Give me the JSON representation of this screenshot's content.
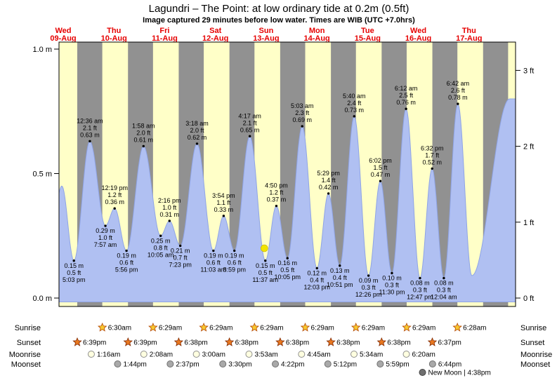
{
  "colors": {
    "day_bg": "#ffffc8",
    "night_band": "#919191",
    "tide_fill": "#b0c0f2",
    "tide_stroke": "#8fa4e6",
    "date_red": "#e60000",
    "marker_yellow": "#f2e400",
    "sunrise_star": "#f8c830",
    "sunset_star": "#e87820",
    "moonrise_fill": "#ffffe0",
    "moonset_fill": "#a9a9a9"
  },
  "chart_data": {
    "type": "area",
    "title": "Lagundri – The Point: at low ordinary tide at 0.2m (0.5ft)",
    "subtitle": "Image captured 29 minutes before low water. Times are WIB (UTC +7.0hrs)",
    "t_start": 10,
    "t_end": 226,
    "t_unit": "hours since Wed 09-Aug 00:00",
    "ylim_m": [
      0,
      1.06
    ],
    "days": [
      {
        "dow": "Wed",
        "date": "09-Aug"
      },
      {
        "dow": "Thu",
        "date": "10-Aug"
      },
      {
        "dow": "Fri",
        "date": "11-Aug"
      },
      {
        "dow": "Sat",
        "date": "12-Aug"
      },
      {
        "dow": "Sun",
        "date": "13-Aug"
      },
      {
        "dow": "Mon",
        "date": "14-Aug"
      },
      {
        "dow": "Tue",
        "date": "15-Aug"
      },
      {
        "dow": "Wed",
        "date": "16-Aug"
      },
      {
        "dow": "Thu",
        "date": "17-Aug"
      }
    ],
    "y_axis_left": [
      {
        "label": "1.0 m",
        "meters": 1.0
      },
      {
        "label": "0.5 m",
        "meters": 0.5
      },
      {
        "label": "0.0 m",
        "meters": 0.0
      }
    ],
    "y_axis_right": [
      {
        "label": "3 ft",
        "meters": 0.9144
      },
      {
        "label": "2 ft",
        "meters": 0.6096
      },
      {
        "label": "1 ft",
        "meters": 0.3048
      },
      {
        "label": "0 ft",
        "meters": 0.0
      }
    ],
    "night_bands": {
      "count": 9,
      "sunset_hour": 18.64,
      "sunrise_hour": 6.48
    },
    "marker": {
      "t": 107.13,
      "h": 0.2
    },
    "events": [
      {
        "t": 6.8,
        "h": 0.3,
        "kind": "low",
        "labeled": false
      },
      {
        "t": 11.33,
        "h": 0.45,
        "kind": "high",
        "labeled": false
      },
      {
        "t": 17.05,
        "h": 0.15,
        "kind": "low",
        "labeled": true,
        "lines": [
          "0.15 m",
          "0.5 ft",
          "5:03 pm"
        ]
      },
      {
        "t": 24.6,
        "h": 0.63,
        "kind": "high",
        "labeled": true,
        "lines": [
          "12:36 am",
          "2.1 ft",
          "0.63 m"
        ]
      },
      {
        "t": 31.95,
        "h": 0.29,
        "kind": "low",
        "labeled": true,
        "lines": [
          "0.29 m",
          "1.0 ft",
          "7:57 am"
        ]
      },
      {
        "t": 36.32,
        "h": 0.36,
        "kind": "high",
        "labeled": true,
        "lines": [
          "12:19 pm",
          "1.2 ft",
          "0.36 m"
        ]
      },
      {
        "t": 41.93,
        "h": 0.19,
        "kind": "low",
        "labeled": true,
        "lines": [
          "0.19 m",
          "0.6 ft",
          "5:56 pm"
        ]
      },
      {
        "t": 49.97,
        "h": 0.61,
        "kind": "high",
        "labeled": true,
        "lines": [
          "1:58 am",
          "2.0 ft",
          "0.61 m"
        ]
      },
      {
        "t": 58.08,
        "h": 0.25,
        "kind": "low",
        "labeled": true,
        "lines": [
          "0.25 m",
          "0.8 ft",
          "10:05 am"
        ]
      },
      {
        "t": 62.27,
        "h": 0.31,
        "kind": "high",
        "labeled": true,
        "lines": [
          "2:16 pm",
          "1.0 ft",
          "0.31 m"
        ]
      },
      {
        "t": 67.38,
        "h": 0.21,
        "kind": "low",
        "labeled": true,
        "lines": [
          "0.21 m",
          "0.7 ft",
          "7:23 pm"
        ]
      },
      {
        "t": 75.3,
        "h": 0.62,
        "kind": "high",
        "labeled": true,
        "lines": [
          "3:18 am",
          "2.0 ft",
          "0.62 m"
        ]
      },
      {
        "t": 83.05,
        "h": 0.19,
        "kind": "low",
        "labeled": true,
        "lines": [
          "0.19 m",
          "0.6 ft",
          "11:03 am"
        ]
      },
      {
        "t": 87.9,
        "h": 0.33,
        "kind": "high",
        "labeled": true,
        "lines": [
          "3:54 pm",
          "1.1 ft",
          "0.33 m"
        ]
      },
      {
        "t": 92.98,
        "h": 0.19,
        "kind": "low",
        "labeled": true,
        "lines": [
          "0.19 m",
          "0.6 ft",
          "8:59 pm"
        ]
      },
      {
        "t": 100.28,
        "h": 0.65,
        "kind": "high",
        "labeled": true,
        "lines": [
          "4:17 am",
          "2.1 ft",
          "0.65 m"
        ]
      },
      {
        "t": 107.62,
        "h": 0.15,
        "kind": "low",
        "labeled": true,
        "lines": [
          "0.15 m",
          "0.5 ft",
          "11:37 am"
        ]
      },
      {
        "t": 112.83,
        "h": 0.37,
        "kind": "high",
        "labeled": true,
        "lines": [
          "4:50 pm",
          "1.2 ft",
          "0.37 m"
        ]
      },
      {
        "t": 118.08,
        "h": 0.16,
        "kind": "low",
        "labeled": true,
        "lines": [
          "0.16 m",
          "0.5 ft",
          "10:05 pm"
        ]
      },
      {
        "t": 125.05,
        "h": 0.69,
        "kind": "high",
        "labeled": true,
        "lines": [
          "5:03 am",
          "2.3 ft",
          "0.69 m"
        ]
      },
      {
        "t": 132.05,
        "h": 0.12,
        "kind": "low",
        "labeled": true,
        "lines": [
          "0.12 m",
          "0.4 ft",
          "12:03 pm"
        ]
      },
      {
        "t": 137.48,
        "h": 0.42,
        "kind": "high",
        "labeled": true,
        "lines": [
          "5:29 pm",
          "1.4 ft",
          "0.42 m"
        ]
      },
      {
        "t": 142.85,
        "h": 0.13,
        "kind": "low",
        "labeled": true,
        "lines": [
          "0.13 m",
          "0.4 ft",
          "10:51 pm"
        ]
      },
      {
        "t": 149.67,
        "h": 0.73,
        "kind": "high",
        "labeled": true,
        "lines": [
          "5:40 am",
          "2.4 ft",
          "0.73 m"
        ]
      },
      {
        "t": 156.43,
        "h": 0.09,
        "kind": "low",
        "labeled": true,
        "lines": [
          "0.09 m",
          "0.3 ft",
          "12:26 pm"
        ]
      },
      {
        "t": 162.03,
        "h": 0.47,
        "kind": "high",
        "labeled": true,
        "lines": [
          "6:02 pm",
          "1.5 ft",
          "0.47 m"
        ]
      },
      {
        "t": 167.5,
        "h": 0.1,
        "kind": "low",
        "labeled": true,
        "lines": [
          "0.10 m",
          "0.3 ft",
          "11:30 pm"
        ]
      },
      {
        "t": 174.2,
        "h": 0.76,
        "kind": "high",
        "labeled": true,
        "lines": [
          "6:12 am",
          "2.5 ft",
          "0.76 m"
        ]
      },
      {
        "t": 180.78,
        "h": 0.08,
        "kind": "low",
        "labeled": true,
        "lines": [
          "0.08 m",
          "0.3 ft",
          "12:47 pm"
        ]
      },
      {
        "t": 186.53,
        "h": 0.52,
        "kind": "high",
        "labeled": true,
        "lines": [
          "6:32 pm",
          "1.7 ft",
          "0.52 m"
        ]
      },
      {
        "t": 192.07,
        "h": 0.08,
        "kind": "low",
        "labeled": true,
        "lines": [
          "0.08 m",
          "0.3 ft",
          "12:04 am"
        ]
      },
      {
        "t": 198.7,
        "h": 0.78,
        "kind": "high",
        "labeled": true,
        "lines": [
          "6:42 am",
          "2.6 ft",
          "0.78 m"
        ]
      },
      {
        "t": 205.3,
        "h": 0.09,
        "kind": "low",
        "labeled": false
      },
      {
        "t": 223.2,
        "h": 0.8,
        "kind": "high",
        "labeled": false
      }
    ]
  },
  "astro": {
    "rows": [
      {
        "name": "sunrise",
        "label": "Sunrise",
        "icon": "sunrise-star",
        "entries": [
          {
            "t": 30.5,
            "time": "6:30am"
          },
          {
            "t": 54.48,
            "time": "6:29am"
          },
          {
            "t": 78.48,
            "time": "6:29am"
          },
          {
            "t": 102.48,
            "time": "6:29am"
          },
          {
            "t": 126.48,
            "time": "6:29am"
          },
          {
            "t": 150.48,
            "time": "6:29am"
          },
          {
            "t": 174.48,
            "time": "6:29am"
          },
          {
            "t": 198.47,
            "time": "6:28am"
          }
        ]
      },
      {
        "name": "sunset",
        "label": "Sunset",
        "icon": "sunset-star",
        "entries": [
          {
            "t": 18.65,
            "time": "6:39pm"
          },
          {
            "t": 42.65,
            "time": "6:39pm"
          },
          {
            "t": 66.63,
            "time": "6:38pm"
          },
          {
            "t": 90.63,
            "time": "6:38pm"
          },
          {
            "t": 114.63,
            "time": "6:38pm"
          },
          {
            "t": 138.63,
            "time": "6:38pm"
          },
          {
            "t": 162.63,
            "time": "6:38pm"
          },
          {
            "t": 186.62,
            "time": "6:37pm"
          }
        ]
      },
      {
        "name": "moonrise",
        "label": "Moonrise",
        "icon": "moonrise-circle",
        "entries": [
          {
            "t": 25.27,
            "time": "1:16am"
          },
          {
            "t": 50.13,
            "time": "2:08am"
          },
          {
            "t": 75.0,
            "time": "3:00am"
          },
          {
            "t": 99.88,
            "time": "3:53am"
          },
          {
            "t": 124.75,
            "time": "4:45am"
          },
          {
            "t": 149.57,
            "time": "5:34am"
          },
          {
            "t": 174.33,
            "time": "6:20am"
          }
        ]
      },
      {
        "name": "moonset",
        "label": "Moonset",
        "icon": "moonset-circle",
        "entries": [
          {
            "t": 37.73,
            "time": "1:44pm"
          },
          {
            "t": 62.62,
            "time": "2:37pm"
          },
          {
            "t": 87.5,
            "time": "3:30pm"
          },
          {
            "t": 112.37,
            "time": "4:22pm"
          },
          {
            "t": 137.2,
            "time": "5:12pm"
          },
          {
            "t": 161.98,
            "time": "5:59pm"
          },
          {
            "t": 186.73,
            "time": "6:44pm"
          }
        ]
      }
    ],
    "new_moon": {
      "label": "New Moon | 4:38pm",
      "t": 184.63
    }
  }
}
